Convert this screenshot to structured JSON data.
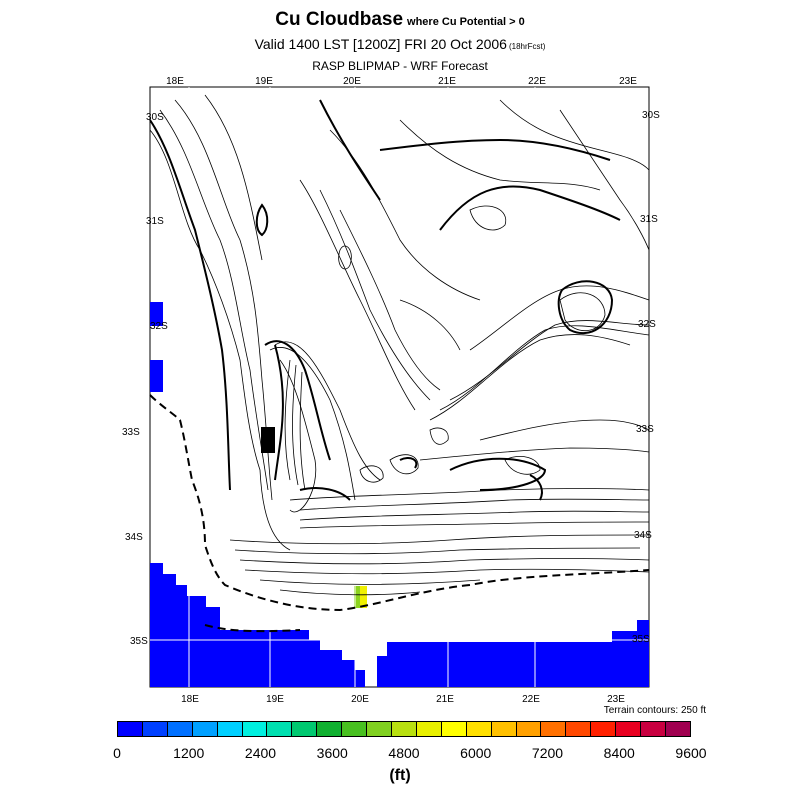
{
  "header": {
    "title": "Cu Cloudbase",
    "title_note": "where Cu Potential > 0",
    "valid": "Valid 1400 LST [1200Z] FRI 20 Oct 2006",
    "valid_note": "(18hrFcst)",
    "model": "RASP BLIPMAP - WRF Forecast"
  },
  "map": {
    "lon_labels": [
      "18E",
      "19E",
      "20E",
      "21E",
      "22E",
      "23E"
    ],
    "lat_labels": [
      "30S",
      "31S",
      "32S",
      "33S",
      "34S",
      "35S"
    ],
    "terrain_note": "Terrain contours: 250 ft",
    "fill_colors": {
      "low": "#0000ff",
      "mid_green": "#8cd41e",
      "mid_yellow": "#f0f000"
    }
  },
  "colorbar": {
    "colors": [
      "#0000ff",
      "#0040ff",
      "#0070ff",
      "#00a0ff",
      "#00d0ff",
      "#00f0e0",
      "#00e0b0",
      "#00c870",
      "#10b030",
      "#48c020",
      "#80d020",
      "#b8e010",
      "#e8f000",
      "#ffff00",
      "#ffe000",
      "#ffc000",
      "#ffa000",
      "#ff7000",
      "#ff4800",
      "#ff2000",
      "#e80020",
      "#c80040",
      "#a00050"
    ],
    "tick_labels": [
      "0",
      "1200",
      "2400",
      "3600",
      "4800",
      "6000",
      "7200",
      "8400",
      "9600"
    ],
    "units": "(ft)"
  }
}
